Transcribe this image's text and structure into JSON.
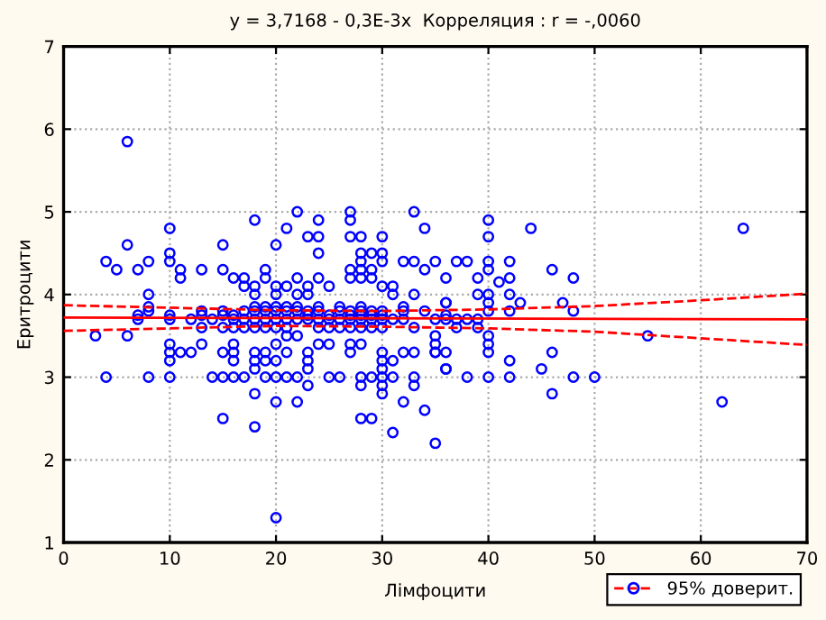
{
  "chart_data": {
    "type": "scatter",
    "title": "y = 3,7168 - 0,3E-3x  Корреляция : r = -,0060",
    "xlabel": "Лімфоцити",
    "ylabel": "Еритроцити",
    "xlim": [
      0,
      70
    ],
    "ylim": [
      1,
      7
    ],
    "xticks": [
      0,
      10,
      20,
      30,
      40,
      50,
      60,
      70
    ],
    "yticks": [
      1,
      2,
      3,
      4,
      5,
      6,
      7
    ],
    "grid": true,
    "legend": "bottom right",
    "series": [
      {
        "color": "#0000ff",
        "marker": "circle",
        "x": [
          6,
          10,
          6,
          4,
          5,
          7,
          8,
          10,
          10,
          11,
          11,
          13,
          15,
          15,
          16,
          17,
          17,
          18,
          18,
          18,
          19,
          19,
          20,
          20,
          20,
          21,
          21,
          22,
          22,
          22,
          23,
          23,
          23,
          24,
          24,
          24,
          24,
          25,
          27,
          27,
          27,
          28,
          27,
          27,
          28,
          28,
          28,
          28,
          29,
          29,
          29,
          30,
          30,
          30,
          30,
          31,
          31,
          32,
          33,
          33,
          33,
          34,
          34,
          35,
          36,
          8,
          40,
          40,
          44,
          64,
          37,
          38,
          40,
          40,
          42,
          39,
          41,
          42,
          46,
          48,
          39,
          40,
          40,
          42,
          36,
          43,
          47,
          48,
          42,
          40,
          7,
          8,
          10,
          13,
          15,
          16,
          18,
          19,
          20,
          21,
          22,
          23,
          24,
          25,
          26,
          27,
          28,
          28,
          29,
          30,
          32,
          36,
          36,
          3,
          6,
          10,
          10,
          10,
          11,
          12,
          13,
          15,
          16,
          16,
          16,
          18,
          18,
          18,
          19,
          19,
          20,
          20,
          21,
          22,
          21,
          23,
          23,
          23,
          24,
          25,
          27,
          27,
          28,
          30,
          30,
          30,
          31,
          32,
          33,
          35,
          35,
          35,
          36,
          4,
          8,
          10,
          14,
          15,
          16,
          17,
          19,
          20,
          21,
          22,
          25,
          26,
          28,
          30,
          31,
          33,
          23,
          28,
          29,
          30,
          30,
          18,
          20,
          22,
          33,
          32,
          15,
          18,
          28,
          29,
          31,
          34,
          35,
          20,
          36,
          37,
          38,
          39,
          37,
          39,
          40,
          40,
          40,
          35,
          36,
          36,
          38,
          40,
          42,
          42,
          45,
          46,
          48,
          50,
          46,
          55,
          62,
          8,
          13,
          15,
          17,
          18,
          19,
          20,
          21,
          22,
          23,
          24,
          26,
          27,
          28,
          29,
          30,
          32,
          34,
          7,
          10,
          12,
          14,
          16,
          17,
          18,
          19,
          20,
          21,
          22,
          23,
          24,
          25,
          26,
          27,
          28,
          29,
          30,
          31,
          32,
          35,
          13,
          15,
          16,
          17,
          18,
          19,
          20,
          21,
          24,
          25,
          26,
          27,
          28,
          29,
          30,
          33
        ],
        "values": [
          5.85,
          4.8,
          4.6,
          4.4,
          4.3,
          4.3,
          4.4,
          4.5,
          4.4,
          4.3,
          4.2,
          4.3,
          4.6,
          4.3,
          4.2,
          4.2,
          4.1,
          4.9,
          4.1,
          4.0,
          4.3,
          4.2,
          4.6,
          4.1,
          4.0,
          4.8,
          4.1,
          5.0,
          4.2,
          4.0,
          4.7,
          4.1,
          4.0,
          4.9,
          4.7,
          4.5,
          4.2,
          4.1,
          5.0,
          4.9,
          4.7,
          4.7,
          4.3,
          4.2,
          4.5,
          4.4,
          4.3,
          4.2,
          4.5,
          4.3,
          4.2,
          4.7,
          4.5,
          4.4,
          4.1,
          4.1,
          4.0,
          4.4,
          5.0,
          4.4,
          4.0,
          4.8,
          4.3,
          4.4,
          4.2,
          4.0,
          4.9,
          4.7,
          4.8,
          4.8,
          4.4,
          4.4,
          4.4,
          4.3,
          4.4,
          4.2,
          4.15,
          4.2,
          4.3,
          4.2,
          4.0,
          4.0,
          3.9,
          4.0,
          3.9,
          3.9,
          3.9,
          3.8,
          3.8,
          3.8,
          3.75,
          3.85,
          3.75,
          3.75,
          3.75,
          3.75,
          3.85,
          3.85,
          3.85,
          3.85,
          3.85,
          3.75,
          3.85,
          3.75,
          3.85,
          3.75,
          3.85,
          3.75,
          3.75,
          3.75,
          3.85,
          3.75,
          3.9,
          3.5,
          3.5,
          3.4,
          3.3,
          3.2,
          3.3,
          3.3,
          3.4,
          3.3,
          3.3,
          3.2,
          3.4,
          3.3,
          3.2,
          3.1,
          3.3,
          3.2,
          3.4,
          3.2,
          3.5,
          3.5,
          3.3,
          3.3,
          3.2,
          3.1,
          3.4,
          3.4,
          3.4,
          3.3,
          3.4,
          3.3,
          3.2,
          3.1,
          3.2,
          3.3,
          3.3,
          3.5,
          3.4,
          3.3,
          3.1,
          3.0,
          3.0,
          3.0,
          3.0,
          3.0,
          3.0,
          3.0,
          3.0,
          3.0,
          3.0,
          3.0,
          3.0,
          3.0,
          3.0,
          3.0,
          3.0,
          3.0,
          2.9,
          2.9,
          3.0,
          2.9,
          2.8,
          2.8,
          2.7,
          2.7,
          2.9,
          2.7,
          2.5,
          2.4,
          2.5,
          2.5,
          2.33,
          2.6,
          2.2,
          1.3,
          3.7,
          3.7,
          3.7,
          3.7,
          3.6,
          3.6,
          3.5,
          3.4,
          3.3,
          3.3,
          3.3,
          3.1,
          3.0,
          3.0,
          3.0,
          3.2,
          3.1,
          3.3,
          3.0,
          3.0,
          2.8,
          3.5,
          2.7,
          3.8,
          3.8,
          3.8,
          3.8,
          3.8,
          3.8,
          3.8,
          3.8,
          3.8,
          3.8,
          3.8,
          3.8,
          3.8,
          3.8,
          3.8,
          3.8,
          3.8,
          3.8,
          3.7,
          3.7,
          3.7,
          3.7,
          3.7,
          3.7,
          3.7,
          3.7,
          3.7,
          3.7,
          3.7,
          3.7,
          3.7,
          3.7,
          3.7,
          3.7,
          3.7,
          3.7,
          3.7,
          3.7,
          3.7,
          3.7,
          3.6,
          3.6,
          3.6,
          3.6,
          3.6,
          3.6,
          3.6,
          3.6,
          3.6,
          3.6,
          3.6,
          3.6,
          3.6,
          3.6,
          3.6,
          3.6
        ]
      },
      {
        "type": "line",
        "color": "#ff0000",
        "marker": "none",
        "line_style": "solid",
        "x": [
          0,
          70
        ],
        "values": [
          3.72,
          3.7
        ]
      },
      {
        "type": "line",
        "name": "95% доверит.",
        "color": "#ff0000",
        "marker": "none",
        "line_style": "dashed",
        "x": [
          0,
          10,
          20,
          30,
          40,
          50,
          60,
          70
        ],
        "values": [
          3.87,
          3.84,
          3.81,
          3.8,
          3.82,
          3.86,
          3.93,
          4.01
        ]
      },
      {
        "type": "line",
        "color": "#ff0000",
        "marker": "none",
        "line_style": "dashed",
        "x": [
          0,
          10,
          20,
          30,
          40,
          50,
          60,
          70
        ],
        "values": [
          3.56,
          3.59,
          3.62,
          3.61,
          3.59,
          3.55,
          3.47,
          3.39
        ]
      }
    ]
  }
}
